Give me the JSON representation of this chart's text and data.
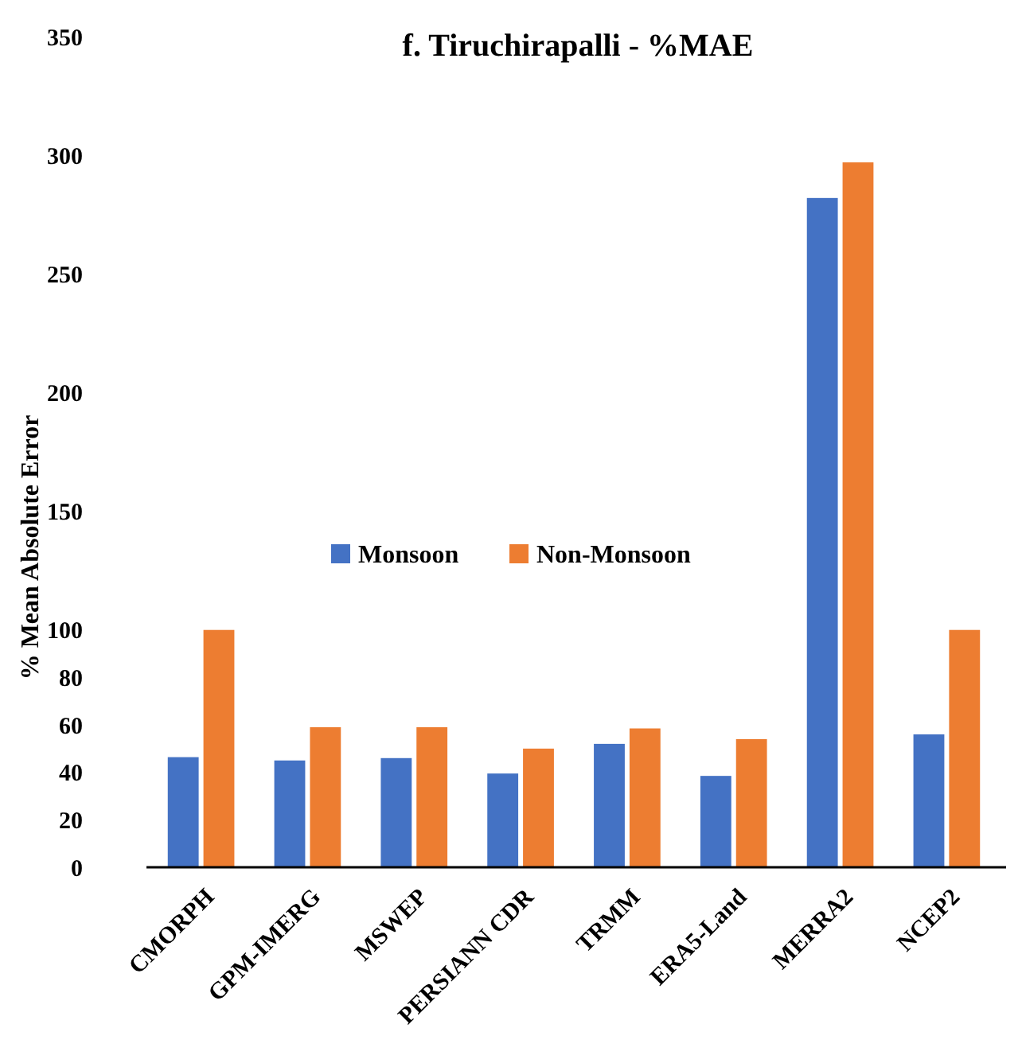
{
  "chart_data": {
    "type": "bar",
    "title": "f. Tiruchirapalli - %MAE",
    "ylabel": "% Mean Absolute Error",
    "categories": [
      "CMORPH",
      "GPM-IMERG",
      "MSWEP",
      "PERSIANN CDR",
      "TRMM",
      "ERA5-Land",
      "MERRA2",
      "NCEP2"
    ],
    "series": [
      {
        "name": "Monsoon",
        "color": "#4472c4",
        "values": [
          46.4,
          45,
          46,
          39.5,
          52,
          38.5,
          282,
          56
        ]
      },
      {
        "name": "Non-Monsoon",
        "color": "#ed7d31",
        "values": [
          100,
          59,
          59,
          50,
          58.5,
          54,
          297,
          100
        ]
      }
    ],
    "ylim": [
      0,
      350
    ],
    "yticks": [
      0,
      20,
      40,
      60,
      80,
      100,
      150,
      200,
      250,
      300,
      350
    ],
    "grid": false,
    "legend": "left"
  }
}
